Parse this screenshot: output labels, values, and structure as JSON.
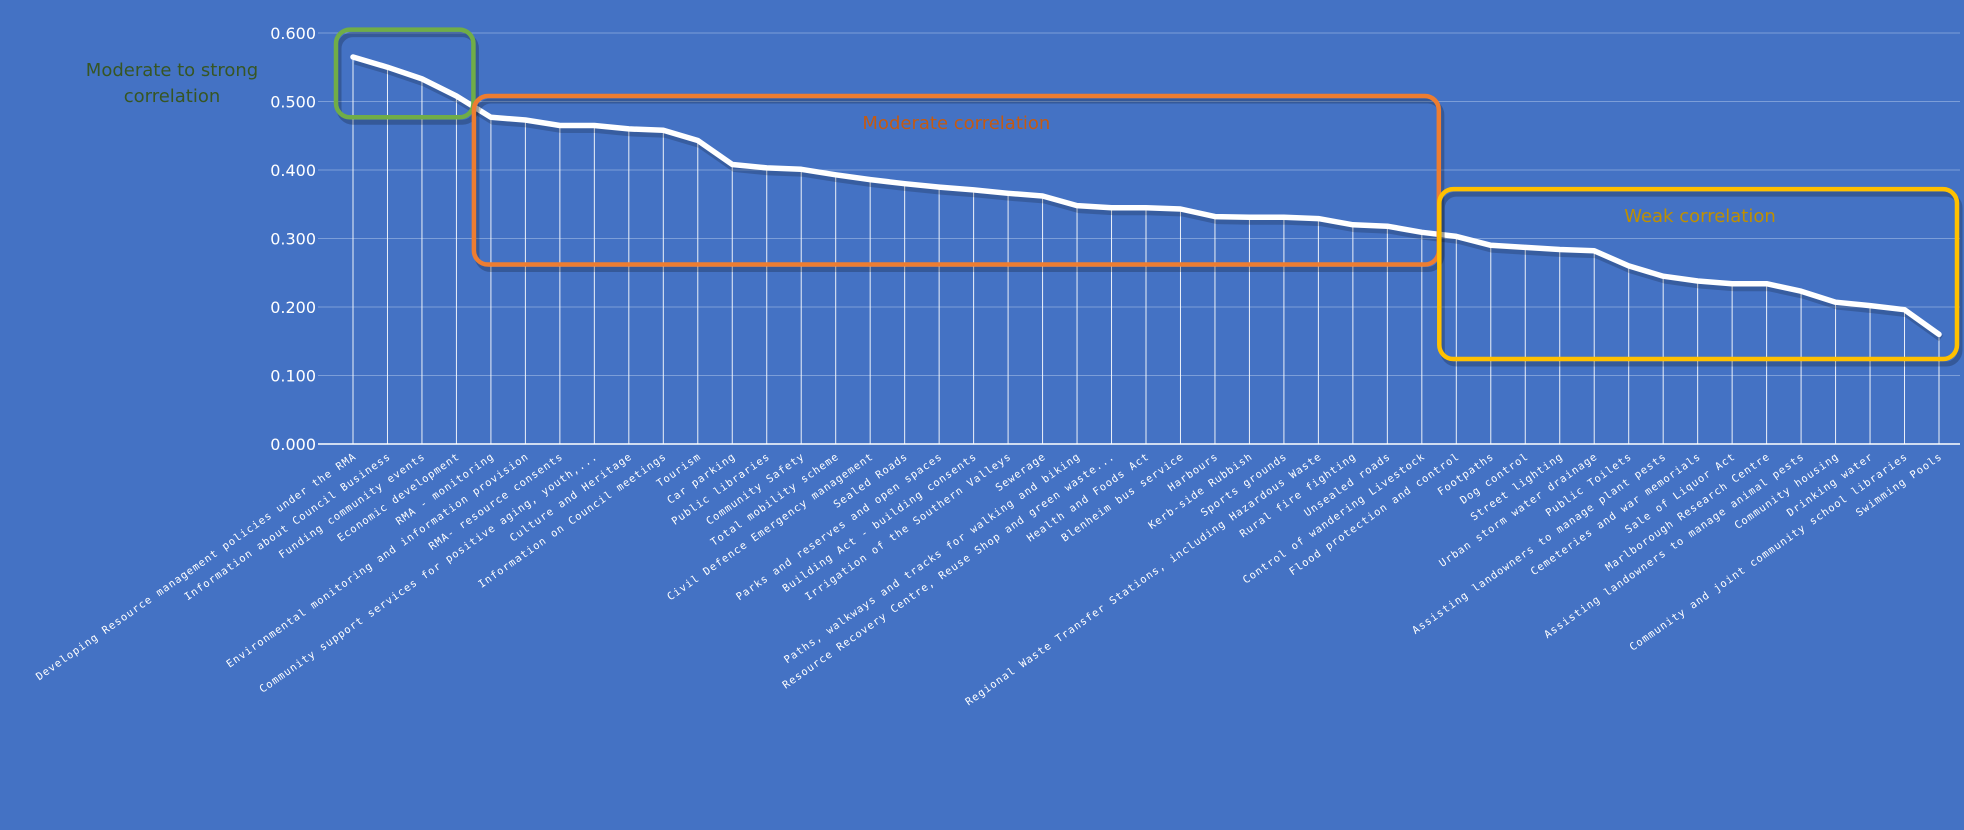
{
  "chart_data": {
    "type": "line",
    "title": "",
    "xlabel": "",
    "ylabel": "",
    "ylim": [
      0,
      0.6
    ],
    "yticks": [
      "0.000",
      "0.100",
      "0.200",
      "0.300",
      "0.400",
      "0.500",
      "0.600"
    ],
    "grid": true,
    "droplines": true,
    "colors": {
      "background": "#4472C4",
      "line": "#ffffff",
      "gridline": "#7C9ED8",
      "strong_box": "#70AD47",
      "moderate_box": "#ED7D31",
      "weak_box": "#FFC000",
      "strong_text": "#375623",
      "moderate_text": "#C55A11",
      "weak_text": "#BF8F00"
    },
    "categories": [
      "Developing Resource management policies under the RMA",
      "Information about Council Business",
      "Funding community events",
      "Economic development",
      "RMA - monitoring",
      "Environmental monitoring and information provision",
      "RMA- resource consents",
      "Community support services for positive aging, youth,...",
      "Culture and Heritage",
      "Information on Council meetings",
      "Tourism",
      "Car parking",
      "Public libraries",
      "Community Safety",
      "Total mobility scheme",
      "Civil Defence Emergency management",
      "Sealed Roads",
      "Parks and reserves and open spaces",
      "Building Act - building consents",
      "Irrigation of the Southern Valleys",
      "Sewerage",
      "Paths, walkways and tracks for walking and biking",
      "Resource Recovery Centre, Reuse Shop and green waste...",
      "Health and Foods Act",
      "Blenheim bus service",
      "Harbours",
      "Kerb-side Rubbish",
      "Sports grounds",
      "Regional Waste Transfer Stations, including Hazardous Waste",
      "Rural fire fighting",
      "Unsealed roads",
      "Control of wandering Livestock",
      "Flood protection and control",
      "Footpaths",
      "Dog control",
      "Street lighting",
      "Urban storm water drainage",
      "Public Toilets",
      "Assisting landowners to manage plant pests",
      "Cemeteries and war memorials",
      "Sale of Liquor Act",
      "Marlborough Research Centre",
      "Assisting landowners to manage animal pests",
      "Community housing",
      "Drinking water",
      "Community and joint community school libraries",
      "Swimming Pools"
    ],
    "values": [
      0.565,
      0.55,
      0.533,
      0.508,
      0.477,
      0.473,
      0.465,
      0.465,
      0.46,
      0.458,
      0.443,
      0.408,
      0.403,
      0.401,
      0.393,
      0.386,
      0.38,
      0.375,
      0.371,
      0.366,
      0.362,
      0.348,
      0.345,
      0.345,
      0.343,
      0.332,
      0.331,
      0.331,
      0.329,
      0.32,
      0.318,
      0.309,
      0.303,
      0.29,
      0.287,
      0.284,
      0.282,
      0.26,
      0.245,
      0.238,
      0.234,
      0.234,
      0.223,
      0.207,
      0.202,
      0.196,
      0.16
    ],
    "annotations": [
      {
        "key": "strong",
        "text": "Moderate to strong\ncorrelation",
        "range": [
          0,
          3
        ],
        "ybox": [
          0.477,
          0.605
        ]
      },
      {
        "key": "moderate",
        "text": "Moderate correlation",
        "range": [
          4,
          31
        ],
        "ybox": [
          0.262,
          0.508
        ]
      },
      {
        "key": "weak",
        "text": "Weak correlation",
        "range": [
          32,
          46
        ],
        "ybox": [
          0.124,
          0.372
        ]
      }
    ]
  }
}
